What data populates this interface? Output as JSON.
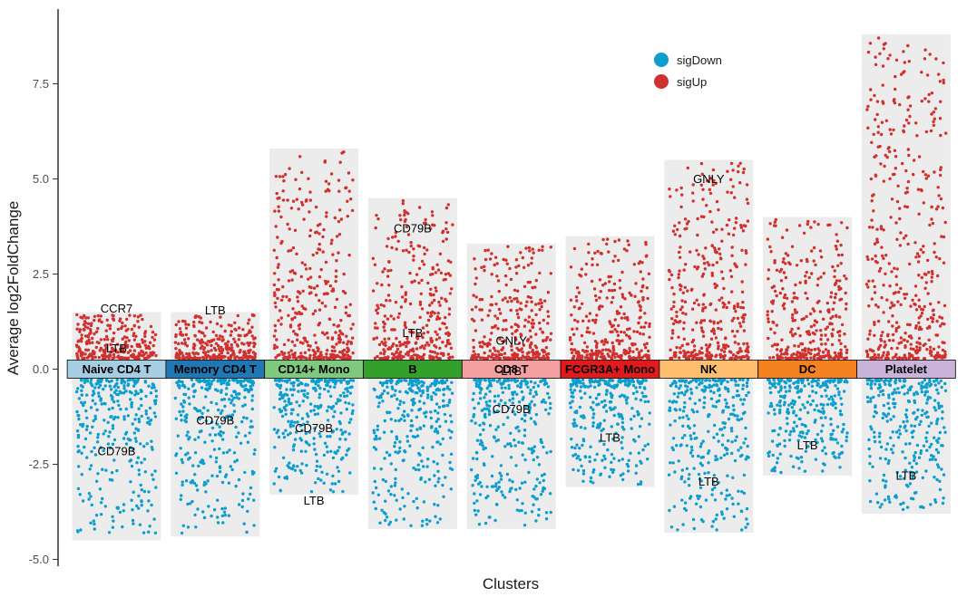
{
  "chart_data": {
    "type": "scatter",
    "title": "",
    "xlabel": "Clusters",
    "ylabel": "Average log2FoldChange",
    "ylim": [
      -5.1,
      8.9
    ],
    "yticks": [
      -5.0,
      -2.5,
      0.0,
      2.5,
      5.0,
      7.5
    ],
    "ytick_labels": [
      "-5.0",
      "-2.5",
      "0.0",
      "2.5",
      "5.0",
      "7.5"
    ],
    "grid": false,
    "legend_position": "top-right",
    "legend": [
      {
        "name": "sigDown",
        "color": "#0d9ecf"
      },
      {
        "name": "sigUp",
        "color": "#d1312e"
      }
    ],
    "clusters": [
      {
        "name": "Naive CD4 T",
        "color": "#a6cee3",
        "up_max": 1.5,
        "down_min": -4.5,
        "labels": [
          {
            "gene": "CCR7",
            "y": 1.6
          },
          {
            "gene": "LTB",
            "y": 0.55
          },
          {
            "gene": "CD79B",
            "y": -2.15
          }
        ]
      },
      {
        "name": "Memory CD4 T",
        "color": "#1f78b4",
        "up_max": 1.5,
        "down_min": -4.4,
        "labels": [
          {
            "gene": "LTB",
            "y": 1.55
          },
          {
            "gene": "CD79B",
            "y": -1.35
          }
        ]
      },
      {
        "name": "CD14+ Mono",
        "color": "#7fc97f",
        "up_max": 5.8,
        "down_min": -3.3,
        "labels": [
          {
            "gene": "CD79B",
            "y": -1.55
          },
          {
            "gene": "LTB",
            "y": -3.45
          }
        ]
      },
      {
        "name": "B",
        "color": "#33a02c",
        "up_max": 4.5,
        "down_min": -4.2,
        "labels": [
          {
            "gene": "CD79B",
            "y": 3.7
          },
          {
            "gene": "LTB",
            "y": 0.95
          }
        ]
      },
      {
        "name": "CD8 T",
        "color": "#f4a0a1",
        "up_max": 3.3,
        "down_min": -4.2,
        "labels": [
          {
            "gene": "GNLY",
            "y": 0.75
          },
          {
            "gene": "LTB",
            "y": -0.05
          },
          {
            "gene": "CD79B",
            "y": -1.05
          }
        ]
      },
      {
        "name": "FCGR3A+ Mono",
        "color": "#e31a1c",
        "up_max": 3.5,
        "down_min": -3.1,
        "labels": [
          {
            "gene": "LTB",
            "y": -1.8
          }
        ]
      },
      {
        "name": "NK",
        "color": "#fdbf6f",
        "up_max": 5.5,
        "down_min": -4.3,
        "labels": [
          {
            "gene": "GNLY",
            "y": 5.0
          },
          {
            "gene": "LTB",
            "y": -2.95
          }
        ]
      },
      {
        "name": "DC",
        "color": "#f58220",
        "up_max": 4.0,
        "down_min": -2.8,
        "labels": [
          {
            "gene": "LTB",
            "y": -2.0
          }
        ]
      },
      {
        "name": "Platelet",
        "color": "#c9b3d9",
        "up_max": 8.8,
        "down_min": -3.8,
        "labels": [
          {
            "gene": "LTB",
            "y": -2.8
          }
        ]
      }
    ]
  }
}
